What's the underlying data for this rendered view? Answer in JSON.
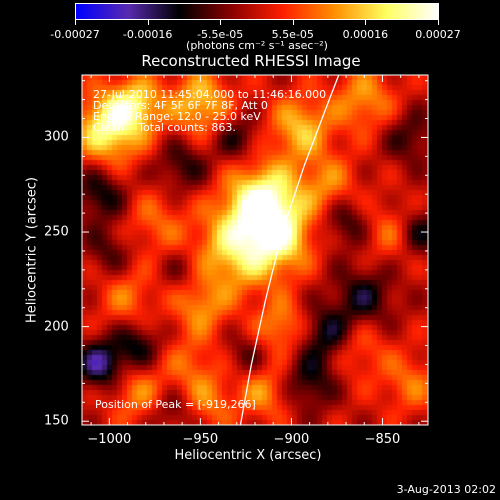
{
  "colorbar": {
    "ticks": [
      "-0.00027",
      "-0.00016",
      "-5.5e-05",
      "5.5e-05",
      "0.00016",
      "0.00027"
    ],
    "unit": "(photons cm⁻² s⁻¹ asec⁻²)",
    "colors": [
      "#0000ff",
      "#5a2bb0",
      "#000000",
      "#8b0000",
      "#ff2000",
      "#ff9000",
      "#ffff60",
      "#ffffff"
    ]
  },
  "chart_data": {
    "type": "heatmap",
    "title": "Reconstructed RHESSI Image",
    "xlabel": "Heliocentric X (arcsec)",
    "ylabel": "Heliocentric Y (arcsec)",
    "xlim": [
      -1015,
      -825
    ],
    "ylim": [
      148,
      333
    ],
    "x_ticks": [
      -1000,
      -950,
      -900,
      -850
    ],
    "y_ticks": [
      150,
      200,
      250,
      300
    ],
    "x_tick_labels": [
      "−1000",
      "−950",
      "−900",
      "−850"
    ],
    "y_tick_labels": [
      "150",
      "200",
      "250",
      "300"
    ],
    "color_range": [
      -0.00027,
      0.00027
    ],
    "peak": [
      -919,
      266
    ],
    "annotations": [
      "27-Jul-2010 11:45:04.000 to 11:46:16.000",
      "Detectors: 4F 5F 6F 7F 8F, Att 0",
      "Energy Range: 12.0 - 25.0 keV",
      "Clean    Total counts: 863."
    ],
    "peak_label": "Position of Peak = [-919,266]",
    "limb_curve": [
      [
        -928,
        148
      ],
      [
        -922,
        180
      ],
      [
        -914,
        215
      ],
      [
        -905,
        250
      ],
      [
        -893,
        285
      ],
      [
        -880,
        318
      ],
      [
        -874,
        333
      ]
    ],
    "blobs": [
      {
        "x": -915,
        "y": 265,
        "v": 0.00027,
        "s": 14
      },
      {
        "x": -930,
        "y": 240,
        "v": 0.00018,
        "s": 16
      },
      {
        "x": -905,
        "y": 245,
        "v": 0.00014,
        "s": 12
      },
      {
        "x": -1000,
        "y": 305,
        "v": 0.00022,
        "s": 13
      },
      {
        "x": -985,
        "y": 318,
        "v": 0.00015,
        "s": 10
      },
      {
        "x": -950,
        "y": 318,
        "v": 0.00016,
        "s": 12
      },
      {
        "x": -895,
        "y": 305,
        "v": 0.00015,
        "s": 12
      },
      {
        "x": -880,
        "y": 275,
        "v": 0.0001,
        "s": 11
      },
      {
        "x": -860,
        "y": 320,
        "v": 0.00012,
        "s": 12
      },
      {
        "x": -845,
        "y": 250,
        "v": 9e-05,
        "s": 11
      },
      {
        "x": -975,
        "y": 255,
        "v": 8e-05,
        "s": 12
      },
      {
        "x": -950,
        "y": 210,
        "v": 0.00011,
        "s": 10
      },
      {
        "x": -990,
        "y": 215,
        "v": 9e-05,
        "s": 11
      },
      {
        "x": -905,
        "y": 200,
        "v": 0.00012,
        "s": 10
      },
      {
        "x": -955,
        "y": 180,
        "v": 8e-05,
        "s": 11
      },
      {
        "x": -985,
        "y": 165,
        "v": 0.0001,
        "s": 11
      },
      {
        "x": -915,
        "y": 165,
        "v": 0.00011,
        "s": 10
      },
      {
        "x": -945,
        "y": 160,
        "v": 9e-05,
        "s": 10
      },
      {
        "x": -865,
        "y": 190,
        "v": 0.0001,
        "s": 12
      },
      {
        "x": -835,
        "y": 170,
        "v": 9e-05,
        "s": 11
      },
      {
        "x": -1005,
        "y": 270,
        "v": -0.00012,
        "s": 10
      },
      {
        "x": -1005,
        "y": 180,
        "v": -0.00018,
        "s": 9
      },
      {
        "x": -985,
        "y": 190,
        "v": -0.00012,
        "s": 9
      },
      {
        "x": -960,
        "y": 285,
        "v": -0.0001,
        "s": 10
      },
      {
        "x": -930,
        "y": 300,
        "v": -0.0001,
        "s": 9
      },
      {
        "x": -880,
        "y": 195,
        "v": -0.00015,
        "s": 11
      },
      {
        "x": -860,
        "y": 215,
        "v": -0.00012,
        "s": 12
      },
      {
        "x": -890,
        "y": 170,
        "v": -0.00011,
        "s": 10
      },
      {
        "x": -835,
        "y": 300,
        "v": -9e-05,
        "s": 10
      },
      {
        "x": -830,
        "y": 250,
        "v": -0.00012,
        "s": 9
      },
      {
        "x": -960,
        "y": 230,
        "v": -6e-05,
        "s": 8
      },
      {
        "x": -1000,
        "y": 240,
        "v": -8e-05,
        "s": 9
      },
      {
        "x": -870,
        "y": 255,
        "v": -0.0001,
        "s": 9
      },
      {
        "x": -925,
        "y": 185,
        "v": -7e-05,
        "s": 8
      },
      {
        "x": -965,
        "y": 155,
        "v": -8e-05,
        "s": 8
      }
    ]
  },
  "footer": {
    "date": "3-Aug-2013 02:02"
  }
}
